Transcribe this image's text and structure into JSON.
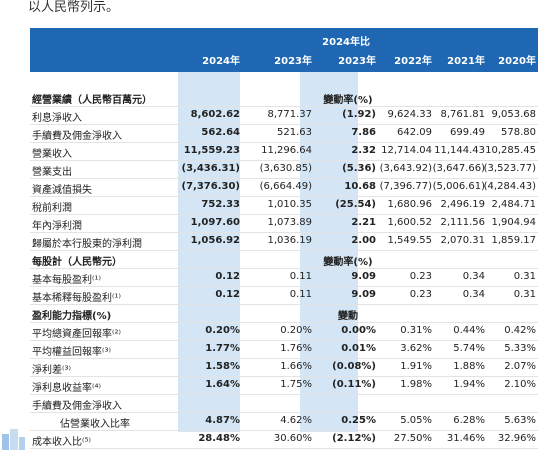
{
  "intro_text": "以人民幣列示。",
  "header": {
    "compare_title": "2024年比",
    "years": [
      "2024年",
      "2023年",
      "2023年",
      "2022年",
      "2021年",
      "2020年"
    ]
  },
  "rows": [
    {
      "label": "經營業績（人民幣百萬元）",
      "bold": true,
      "mid": "變動率(%)"
    },
    {
      "label": "利息淨收入",
      "v": [
        "8,602.62",
        "8,771.37",
        "(1.92)",
        "9,624.33",
        "8,761.81",
        "9,053.68"
      ]
    },
    {
      "label": "手續費及佣金淨收入",
      "v": [
        "562.64",
        "521.63",
        "7.86",
        "642.09",
        "699.49",
        "578.80"
      ]
    },
    {
      "label": "營業收入",
      "v": [
        "11,559.23",
        "11,296.64",
        "2.32",
        "12,714.04",
        "11,144.43",
        "10,285.45"
      ]
    },
    {
      "label": "營業支出",
      "v": [
        "(3,436.31)",
        "(3,630.85)",
        "(5.36)",
        "(3,643.92)",
        "(3,647.66)",
        "(3,523.77)"
      ]
    },
    {
      "label": "資產減值損失",
      "v": [
        "(7,376.30)",
        "(6,664.49)",
        "10.68",
        "(7,396.77)",
        "(5,006.61)",
        "(4,284.43)"
      ]
    },
    {
      "label": "稅前利潤",
      "v": [
        "752.33",
        "1,010.35",
        "(25.54)",
        "1,680.96",
        "2,496.19",
        "2,484.71"
      ]
    },
    {
      "label": "年內淨利潤",
      "v": [
        "1,097.60",
        "1,073.89",
        "2.21",
        "1,600.52",
        "2,111.56",
        "1,904.94"
      ]
    },
    {
      "label": "歸屬於本行股東的淨利潤",
      "v": [
        "1,056.92",
        "1,036.19",
        "2.00",
        "1,549.55",
        "2,070.31",
        "1,859.17"
      ]
    },
    {
      "label": "每股計（人民幣元）",
      "bold": true,
      "mid": "變動率(%)"
    },
    {
      "label": "基本每股盈利⁽¹⁾",
      "v": [
        "0.12",
        "0.11",
        "9.09",
        "0.23",
        "0.34",
        "0.31"
      ]
    },
    {
      "label": "基本稀釋每股盈利⁽¹⁾",
      "v": [
        "0.12",
        "0.11",
        "9.09",
        "0.23",
        "0.34",
        "0.31"
      ]
    },
    {
      "label": "盈利能力指標(%)",
      "bold": true,
      "mid": "變動"
    },
    {
      "label": "平均總資產回報率⁽²⁾",
      "v": [
        "0.20%",
        "0.20%",
        "0.00%",
        "0.31%",
        "0.44%",
        "0.42%"
      ]
    },
    {
      "label": "平均權益回報率⁽³⁾",
      "v": [
        "1.77%",
        "1.76%",
        "0.01%",
        "3.62%",
        "5.74%",
        "5.33%"
      ]
    },
    {
      "label": "淨利差⁽³⁾",
      "v": [
        "1.58%",
        "1.66%",
        "(0.08%)",
        "1.91%",
        "1.88%",
        "2.07%"
      ]
    },
    {
      "label": "淨利息收益率⁽⁴⁾",
      "v": [
        "1.64%",
        "1.75%",
        "(0.11%)",
        "1.98%",
        "1.94%",
        "2.10%"
      ]
    },
    {
      "label": "手續費及佣金淨收入"
    },
    {
      "label": "佔營業收入比率",
      "indent": true,
      "v": [
        "4.87%",
        "4.62%",
        "0.25%",
        "5.05%",
        "6.28%",
        "5.63%"
      ]
    },
    {
      "label": "成本收入比⁽⁵⁾",
      "v": [
        "28.48%",
        "30.60%",
        "(2.12%)",
        "27.50%",
        "31.46%",
        "32.96%"
      ]
    }
  ]
}
